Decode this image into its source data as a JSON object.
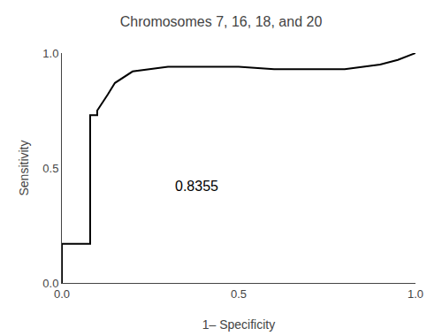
{
  "chart_data": {
    "type": "line",
    "title": "Chromosomes 7, 16, 18, and 20",
    "xlabel": "1– Specificity",
    "ylabel": "Sensitivity",
    "x": [
      0.0,
      0.0,
      0.08,
      0.08,
      0.1,
      0.1,
      0.13,
      0.15,
      0.2,
      0.25,
      0.3,
      0.35,
      0.42,
      0.5,
      0.6,
      0.7,
      0.8,
      0.9,
      0.95,
      1.0
    ],
    "values": [
      0.0,
      0.17,
      0.17,
      0.73,
      0.73,
      0.75,
      0.82,
      0.87,
      0.92,
      0.93,
      0.94,
      0.94,
      0.94,
      0.94,
      0.93,
      0.93,
      0.93,
      0.95,
      0.97,
      1.0
    ],
    "color": "#000000",
    "xlim": [
      0.0,
      1.0
    ],
    "ylim": [
      0.0,
      1.0
    ],
    "xticks": [
      {
        "value": 0.0,
        "label": "0.0"
      },
      0.5,
      {
        "value": 1.0,
        "label": "1.0"
      }
    ],
    "yticks": [
      {
        "value": 0.0,
        "label": "0.0"
      },
      0.5,
      {
        "value": 1.0,
        "label": "1.0"
      }
    ],
    "grid": false,
    "annotations": [
      {
        "text": "0.8355",
        "x": 0.38,
        "y": 0.42
      }
    ]
  }
}
